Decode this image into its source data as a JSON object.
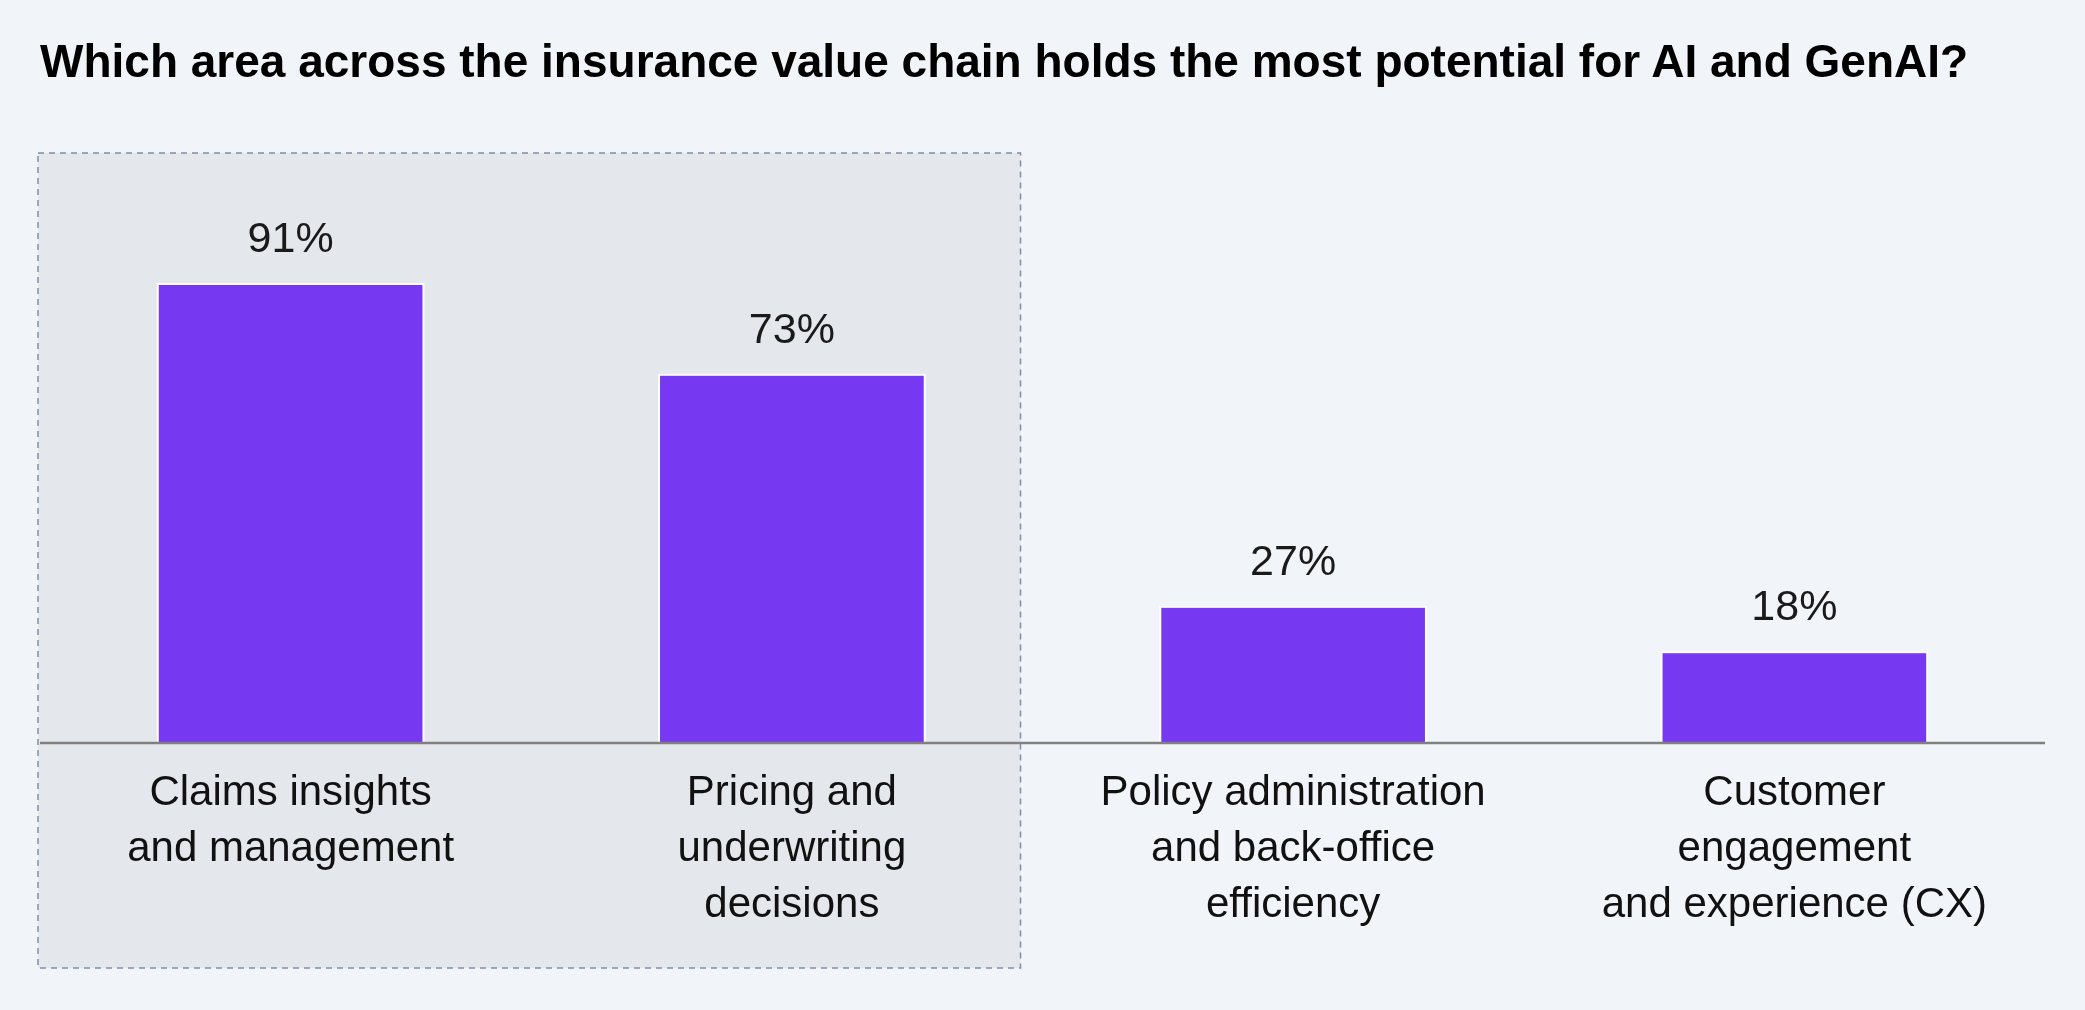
{
  "chart_data": {
    "type": "bar",
    "title": "Which area across the insurance value chain holds the most potential for AI and GenAI?",
    "categories": [
      "Claims insights\nand management",
      "Pricing and\nunderwriting\ndecisions",
      "Policy administration\nand back-office\nefficiency",
      "Customer\nengagement\nand experience (CX)"
    ],
    "values": [
      91,
      73,
      27,
      18
    ],
    "color": "#7638f0",
    "value_labels": [
      "91%",
      "73%",
      "27%",
      "18%"
    ],
    "bands": [
      {
        "axis": "x",
        "from": "Claims insights\nand management",
        "to": "Pricing and\nunderwriting\ndecisions",
        "color": "#e4e7ec"
      }
    ]
  }
}
